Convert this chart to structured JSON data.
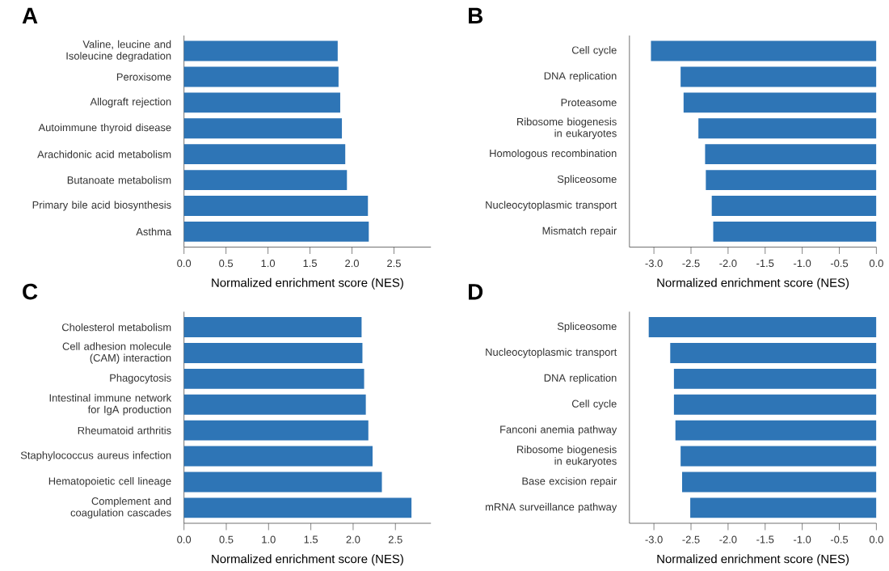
{
  "chart_data": [
    {
      "type": "bar",
      "orientation": "horizontal",
      "title": "A",
      "xlabel": "Normalized enrichment score (NES)",
      "color": "#2e75b6",
      "categories": [
        "Valine, leucine and Isoleucine degradation",
        "Peroxisome",
        "Allograft rejection",
        "Autoimmune thyroid disease",
        "Arachidonic acid metabolism",
        "Butanoate metabolism",
        "Primary bile acid biosynthesis",
        "Asthma"
      ],
      "values": [
        1.83,
        1.84,
        1.86,
        1.88,
        1.92,
        1.94,
        2.19,
        2.2
      ],
      "xlim": [
        0,
        2.94
      ],
      "xticks": [
        {
          "value": 0,
          "label": "0.0"
        },
        0.5,
        {
          "value": 1,
          "label": "1.0"
        },
        1.5,
        {
          "value": 2,
          "label": "2.0"
        },
        2.5
      ]
    },
    {
      "type": "bar",
      "orientation": "horizontal",
      "title": "B",
      "xlabel": "Normalized enrichment score (NES)",
      "color": "#2e75b6",
      "categories": [
        "Cell cycle",
        "DNA replication",
        "Proteasome",
        "Ribosome biogenesis in eukaryotes",
        "Homologous recombination",
        "Spliceosome",
        "Nucleocytoplasmic transport",
        "Mismatch repair"
      ],
      "values": [
        -3.04,
        -2.64,
        -2.6,
        -2.4,
        -2.31,
        -2.3,
        -2.22,
        -2.2
      ],
      "xlim": [
        -3.33,
        0
      ],
      "xticks": [
        {
          "value": -3,
          "label": "-3.0"
        },
        -2.5,
        {
          "value": -2,
          "label": "-2.0"
        },
        -1.5,
        {
          "value": -1,
          "label": "-1.0"
        },
        -0.5,
        {
          "value": 0,
          "label": "0.0"
        }
      ]
    },
    {
      "type": "bar",
      "orientation": "horizontal",
      "title": "C",
      "xlabel": "Normalized enrichment score (NES)",
      "color": "#2e75b6",
      "categories": [
        "Cholesterol metabolism",
        "Cell adhesion molecule (CAM) interaction",
        "Phagocytosis",
        "Intestinal immune network for IgA production",
        "Rheumatoid arthritis",
        "Staphylococcus aureus infection",
        "Hematopoietic cell lineage",
        "Complement and coagulation cascades"
      ],
      "values": [
        2.1,
        2.11,
        2.13,
        2.15,
        2.18,
        2.23,
        2.34,
        2.69
      ],
      "xlim": [
        0,
        2.92
      ],
      "xticks": [
        {
          "value": 0,
          "label": "0.0"
        },
        0.5,
        {
          "value": 1,
          "label": "1.0"
        },
        1.5,
        {
          "value": 2,
          "label": "2.0"
        },
        2.5
      ]
    },
    {
      "type": "bar",
      "orientation": "horizontal",
      "title": "D",
      "xlabel": "Normalized enrichment score (NES)",
      "color": "#2e75b6",
      "categories": [
        "Spliceosome",
        "Nucleocytoplasmic transport",
        "DNA replication",
        "Cell cycle",
        "Fanconi anemia pathway",
        "Ribosome biogenesis in eukaryotes",
        "Base excision repair",
        "mRNA surveillance pathway"
      ],
      "values": [
        -3.07,
        -2.78,
        -2.73,
        -2.73,
        -2.71,
        -2.64,
        -2.62,
        -2.51
      ],
      "xlim": [
        -3.33,
        0
      ],
      "xticks": [
        {
          "value": -3,
          "label": "-3.0"
        },
        -2.5,
        {
          "value": -2,
          "label": "-2.0"
        },
        -1.5,
        {
          "value": -1,
          "label": "-1.0"
        },
        -0.5,
        {
          "value": 0,
          "label": "0.0"
        }
      ]
    }
  ]
}
